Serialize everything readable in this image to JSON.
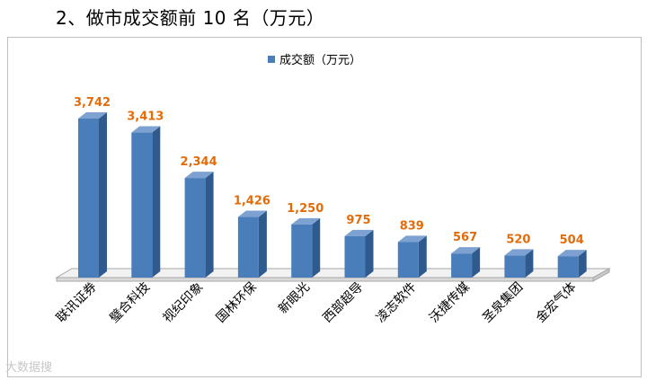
{
  "page": {
    "heading": "2、做市成交额前 10 名（万元）",
    "watermark": "大数据搜"
  },
  "chart_data": {
    "type": "bar",
    "title": "",
    "xlabel": "",
    "ylabel": "",
    "categories": [
      "联讯证券",
      "璧合科技",
      "视纪印象",
      "国林环保",
      "新眼光",
      "西部超导",
      "凌志软件",
      "沃捷传媒",
      "圣泉集团",
      "金宏气体"
    ],
    "series": [
      {
        "name": "成交额（万元）",
        "values": [
          3742,
          3413,
          2344,
          1426,
          1250,
          975,
          839,
          567,
          520,
          504
        ]
      }
    ],
    "data_labels": [
      "3,742",
      "3,413",
      "2,344",
      "1,426",
      "1,250",
      "975",
      "839",
      "567",
      "520",
      "504"
    ],
    "ylim": [
      0,
      4000
    ],
    "grid": false,
    "legend": "top-center",
    "colors": {
      "bar_front": "#4a7ebb",
      "bar_side": "#2f5a8e",
      "bar_top": "#7da2d1",
      "label": "#e36c0a"
    }
  }
}
